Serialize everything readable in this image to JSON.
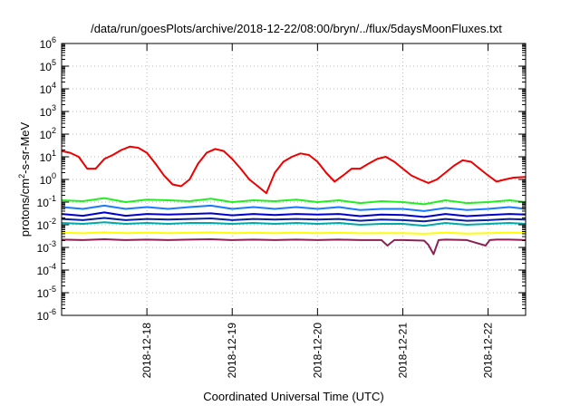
{
  "chart_data": {
    "type": "line",
    "title": "/data/run/goesPlots/archive/2018-12-22/08:00/bryn/../flux/5daysMoonFluxes.txt",
    "xlabel": "Coordinated Universal Time (UTC)",
    "ylabel_base": "protons/cm",
    "ylabel_exp": "2",
    "ylabel_rest": "-s-sr-MeV",
    "y_scale": "log",
    "ylim": [
      1e-06,
      1000000
    ],
    "xlim": [
      0,
      5.44
    ],
    "grid": true,
    "y_ticks": [
      {
        "value": 1e-06,
        "base": "10",
        "exp": "-6"
      },
      {
        "value": 1e-05,
        "base": "10",
        "exp": "-5"
      },
      {
        "value": 0.0001,
        "base": "10",
        "exp": "-4"
      },
      {
        "value": 0.001,
        "base": "10",
        "exp": "-3"
      },
      {
        "value": 0.01,
        "base": "10",
        "exp": "-2"
      },
      {
        "value": 0.1,
        "base": "10",
        "exp": "-1"
      },
      {
        "value": 1,
        "base": "10",
        "exp": "0"
      },
      {
        "value": 10,
        "base": "10",
        "exp": "1"
      },
      {
        "value": 100,
        "base": "10",
        "exp": "2"
      },
      {
        "value": 1000,
        "base": "10",
        "exp": "3"
      },
      {
        "value": 10000,
        "base": "10",
        "exp": "4"
      },
      {
        "value": 100000,
        "base": "10",
        "exp": "5"
      },
      {
        "value": 1000000,
        "base": "10",
        "exp": "6"
      }
    ],
    "x_ticks": [
      {
        "value": 1,
        "label": "2018-12-18"
      },
      {
        "value": 2,
        "label": "2018-12-19"
      },
      {
        "value": 3,
        "label": "2018-12-20"
      },
      {
        "value": 4,
        "label": "2018-12-21"
      },
      {
        "value": 5,
        "label": "2018-12-22"
      }
    ],
    "series": [
      {
        "color": "#ee0000",
        "x": [
          0,
          0.1,
          0.2,
          0.3,
          0.4,
          0.5,
          0.6,
          0.7,
          0.8,
          0.9,
          1.0,
          1.1,
          1.2,
          1.3,
          1.4,
          1.5,
          1.6,
          1.7,
          1.8,
          1.9,
          2.0,
          2.1,
          2.2,
          2.3,
          2.4,
          2.5,
          2.6,
          2.7,
          2.8,
          2.9,
          3.0,
          3.1,
          3.2,
          3.3,
          3.4,
          3.5,
          3.6,
          3.7,
          3.8,
          3.9,
          4.0,
          4.1,
          4.2,
          4.3,
          4.4,
          4.5,
          4.6,
          4.7,
          4.8,
          4.9,
          5.0,
          5.1,
          5.2,
          5.3,
          5.44
        ],
        "y": [
          18,
          15,
          10,
          3,
          3,
          8,
          12,
          20,
          28,
          25,
          15,
          5,
          1.5,
          0.6,
          0.5,
          1,
          5,
          15,
          22,
          18,
          8,
          3,
          1,
          0.5,
          0.25,
          2,
          6,
          10,
          14,
          12,
          6,
          2,
          0.8,
          1.5,
          3,
          3,
          5,
          8,
          10,
          6,
          3,
          1.5,
          1,
          0.7,
          1,
          2,
          4,
          7,
          6,
          3,
          1.5,
          0.8,
          1,
          1.2,
          1.3
        ]
      },
      {
        "color": "#22ee22",
        "x": [
          0,
          0.25,
          0.5,
          0.75,
          1.0,
          1.25,
          1.5,
          1.75,
          2.0,
          2.25,
          2.5,
          2.75,
          3.0,
          3.25,
          3.5,
          3.75,
          4.0,
          4.25,
          4.5,
          4.75,
          5.0,
          5.25,
          5.44
        ],
        "y": [
          0.12,
          0.11,
          0.15,
          0.1,
          0.13,
          0.12,
          0.11,
          0.14,
          0.1,
          0.12,
          0.11,
          0.13,
          0.1,
          0.12,
          0.09,
          0.11,
          0.1,
          0.08,
          0.12,
          0.09,
          0.1,
          0.12,
          0.1
        ]
      },
      {
        "color": "#1a7aff",
        "x": [
          0,
          0.25,
          0.5,
          0.75,
          1.0,
          1.25,
          1.5,
          1.75,
          2.0,
          2.25,
          2.5,
          2.75,
          3.0,
          3.25,
          3.5,
          3.75,
          4.0,
          4.25,
          4.5,
          4.75,
          5.0,
          5.25,
          5.44
        ],
        "y": [
          0.06,
          0.05,
          0.07,
          0.05,
          0.06,
          0.05,
          0.06,
          0.07,
          0.05,
          0.06,
          0.05,
          0.06,
          0.05,
          0.06,
          0.045,
          0.05,
          0.05,
          0.04,
          0.055,
          0.045,
          0.05,
          0.06,
          0.05
        ]
      },
      {
        "color": "#0000cc",
        "x": [
          0,
          0.25,
          0.5,
          0.75,
          1.0,
          1.25,
          1.5,
          1.75,
          2.0,
          2.25,
          2.5,
          2.75,
          3.0,
          3.25,
          3.5,
          3.75,
          4.0,
          4.25,
          4.5,
          4.75,
          5.0,
          5.25,
          5.44
        ],
        "y": [
          0.03,
          0.025,
          0.035,
          0.025,
          0.03,
          0.028,
          0.03,
          0.032,
          0.026,
          0.03,
          0.027,
          0.03,
          0.028,
          0.03,
          0.024,
          0.028,
          0.027,
          0.022,
          0.03,
          0.024,
          0.027,
          0.03,
          0.028
        ]
      },
      {
        "color": "#0a1ea0",
        "x": [
          0,
          0.25,
          0.5,
          0.75,
          1.0,
          1.25,
          1.5,
          1.75,
          2.0,
          2.25,
          2.5,
          2.75,
          3.0,
          3.25,
          3.5,
          3.75,
          4.0,
          4.25,
          4.5,
          4.75,
          5.0,
          5.25,
          5.44
        ],
        "y": [
          0.018,
          0.016,
          0.02,
          0.016,
          0.018,
          0.017,
          0.018,
          0.019,
          0.016,
          0.018,
          0.017,
          0.018,
          0.017,
          0.018,
          0.015,
          0.017,
          0.016,
          0.014,
          0.018,
          0.015,
          0.016,
          0.018,
          0.017
        ]
      },
      {
        "color": "#00aaaa",
        "x": [
          0,
          0.25,
          0.5,
          0.75,
          1.0,
          1.25,
          1.5,
          1.75,
          2.0,
          2.25,
          2.5,
          2.75,
          3.0,
          3.25,
          3.5,
          3.75,
          4.0,
          4.25,
          4.5,
          4.75,
          5.0,
          5.25,
          5.44
        ],
        "y": [
          0.012,
          0.011,
          0.013,
          0.011,
          0.012,
          0.011,
          0.012,
          0.012,
          0.011,
          0.012,
          0.011,
          0.012,
          0.011,
          0.012,
          0.01,
          0.011,
          0.011,
          0.009,
          0.012,
          0.01,
          0.011,
          0.012,
          0.011
        ]
      },
      {
        "color": "#ffff00",
        "x": [
          0,
          0.25,
          0.5,
          0.75,
          1.0,
          1.25,
          1.5,
          1.75,
          2.0,
          2.25,
          2.5,
          2.75,
          3.0,
          3.25,
          3.5,
          3.75,
          4.0,
          4.25,
          4.5,
          4.75,
          5.0,
          5.25,
          5.44
        ],
        "y": [
          0.0045,
          0.0042,
          0.0046,
          0.0043,
          0.0045,
          0.0043,
          0.0044,
          0.0046,
          0.0043,
          0.0044,
          0.0043,
          0.0045,
          0.0043,
          0.0044,
          0.0042,
          0.0043,
          0.0043,
          0.004,
          0.0045,
          0.0041,
          0.0043,
          0.0045,
          0.0044
        ]
      },
      {
        "color": "#8b2252",
        "x": [
          0,
          0.25,
          0.5,
          0.75,
          1.0,
          1.25,
          1.5,
          1.75,
          2.0,
          2.25,
          2.5,
          2.75,
          3.0,
          3.25,
          3.5,
          3.75,
          3.82,
          3.9,
          4.0,
          4.25,
          4.3,
          4.36,
          4.42,
          4.5,
          4.75,
          4.97,
          5.02,
          5.1,
          5.25,
          5.44
        ],
        "y": [
          0.0022,
          0.0021,
          0.0023,
          0.0021,
          0.0022,
          0.0021,
          0.0022,
          0.0023,
          0.0021,
          0.0022,
          0.0021,
          0.0022,
          0.0021,
          0.0022,
          0.0021,
          0.0021,
          0.0012,
          0.0021,
          0.0021,
          0.002,
          0.0013,
          0.0005,
          0.0021,
          0.0022,
          0.0021,
          0.0012,
          0.0021,
          0.0022,
          0.0022,
          0.0021
        ]
      }
    ]
  }
}
